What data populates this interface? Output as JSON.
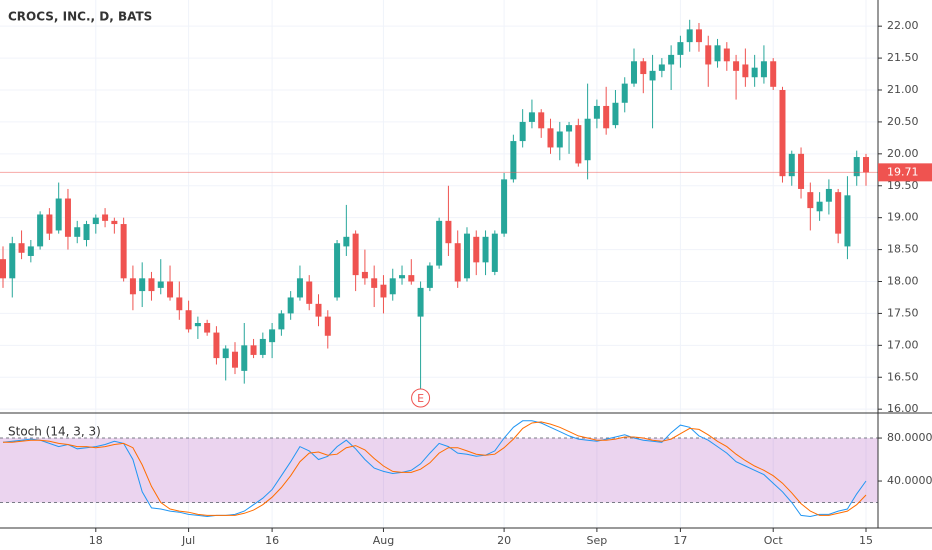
{
  "chart_data": [
    {
      "type": "candlestick",
      "title": "CROCS, INC., D, BATS",
      "up_color": "#26a69a",
      "down_color": "#ef5350",
      "open": [
        18.35,
        18.05,
        18.6,
        18.4,
        18.55,
        19.05,
        18.8,
        19.3,
        18.7,
        18.65,
        18.9,
        19.05,
        18.95,
        18.9,
        18.05,
        17.85,
        18.05,
        17.9,
        18.0,
        17.75,
        17.55,
        17.3,
        17.35,
        17.2,
        16.8,
        16.9,
        16.6,
        17.0,
        16.85,
        17.05,
        17.25,
        17.5,
        17.75,
        18.0,
        17.65,
        17.45,
        17.75,
        18.55,
        18.75,
        18.15,
        18.05,
        17.95,
        17.8,
        18.05,
        18.1,
        17.45,
        17.9,
        18.25,
        18.95,
        18.6,
        18.05,
        18.7,
        18.3,
        18.15,
        18.75,
        19.6,
        20.2,
        20.5,
        20.65,
        20.4,
        20.1,
        20.35,
        20.45,
        19.9,
        20.55,
        20.75,
        20.45,
        20.8,
        21.1,
        21.45,
        21.15,
        21.3,
        21.4,
        21.55,
        21.75,
        21.95,
        21.7,
        21.45,
        21.65,
        21.45,
        21.4,
        21.2,
        21.2,
        21.45,
        21.0,
        19.65,
        20.0,
        19.4,
        19.1,
        19.25,
        19.4,
        18.55,
        19.65,
        19.95
      ],
      "high": [
        18.55,
        18.7,
        18.8,
        18.65,
        19.1,
        19.15,
        19.55,
        19.45,
        18.95,
        18.95,
        19.05,
        19.15,
        19.0,
        19.0,
        18.25,
        18.3,
        18.15,
        18.35,
        18.25,
        18.0,
        17.7,
        17.45,
        17.4,
        17.3,
        17.0,
        17.05,
        17.35,
        17.1,
        17.2,
        17.35,
        17.55,
        17.85,
        18.25,
        18.1,
        17.8,
        17.55,
        18.65,
        19.2,
        18.8,
        18.5,
        18.25,
        18.1,
        18.2,
        18.25,
        18.35,
        18.0,
        18.3,
        19.0,
        19.5,
        18.8,
        18.85,
        18.8,
        18.8,
        18.8,
        19.7,
        20.3,
        20.7,
        20.85,
        20.7,
        20.55,
        20.5,
        20.5,
        20.55,
        21.1,
        20.85,
        21.05,
        21.0,
        21.2,
        21.65,
        21.5,
        21.55,
        21.5,
        21.7,
        21.85,
        22.1,
        22.05,
        21.85,
        21.8,
        21.75,
        21.55,
        21.65,
        21.55,
        21.7,
        21.5,
        21.05,
        20.05,
        20.1,
        19.55,
        19.4,
        19.6,
        19.45,
        19.65,
        20.05,
        20.0
      ],
      "low": [
        17.9,
        17.75,
        18.35,
        18.3,
        18.5,
        18.65,
        18.75,
        18.5,
        18.6,
        18.55,
        18.75,
        18.85,
        18.75,
        18.0,
        17.55,
        17.6,
        17.7,
        17.8,
        17.7,
        17.4,
        17.2,
        17.1,
        17.15,
        16.7,
        16.45,
        16.55,
        16.4,
        16.8,
        16.8,
        16.8,
        17.15,
        17.4,
        17.7,
        17.55,
        17.3,
        16.95,
        17.7,
        18.4,
        17.85,
        17.95,
        17.6,
        17.5,
        17.7,
        17.95,
        17.95,
        16.3,
        17.85,
        18.2,
        18.4,
        17.9,
        18.0,
        18.1,
        18.1,
        18.1,
        18.7,
        19.55,
        20.1,
        20.4,
        20.25,
        20.0,
        19.9,
        20.0,
        19.8,
        19.6,
        20.4,
        20.3,
        20.4,
        20.65,
        21.05,
        20.95,
        20.4,
        21.2,
        21.0,
        21.35,
        21.6,
        21.6,
        21.05,
        21.35,
        21.3,
        20.85,
        21.05,
        21.05,
        21.1,
        21.0,
        19.55,
        19.5,
        19.3,
        18.8,
        18.95,
        19.05,
        18.6,
        18.35,
        19.5,
        19.5
      ],
      "close": [
        18.05,
        18.6,
        18.45,
        18.55,
        19.05,
        18.75,
        19.3,
        18.7,
        18.85,
        18.9,
        19.0,
        18.95,
        18.9,
        18.05,
        17.8,
        18.05,
        17.85,
        18.0,
        17.75,
        17.55,
        17.25,
        17.35,
        17.2,
        16.8,
        16.95,
        16.65,
        17.0,
        16.85,
        17.1,
        17.25,
        17.5,
        17.75,
        18.05,
        17.65,
        17.45,
        17.15,
        18.6,
        18.7,
        18.1,
        18.05,
        17.9,
        17.75,
        18.05,
        18.1,
        18.0,
        17.9,
        18.25,
        18.95,
        18.6,
        18.0,
        18.75,
        18.3,
        18.7,
        18.75,
        19.6,
        20.2,
        20.5,
        20.65,
        20.4,
        20.1,
        20.35,
        20.45,
        19.85,
        20.55,
        20.75,
        20.4,
        20.8,
        21.1,
        21.45,
        21.25,
        21.3,
        21.4,
        21.55,
        21.75,
        21.95,
        21.75,
        21.4,
        21.7,
        21.45,
        21.3,
        21.2,
        21.35,
        21.45,
        21.05,
        19.65,
        20.0,
        19.45,
        19.15,
        19.25,
        19.45,
        18.75,
        19.35,
        19.95,
        19.71
      ],
      "ylim": [
        15.94,
        22.41
      ],
      "yticks": [
        {
          "value": 16,
          "label": "16.00"
        },
        {
          "value": 16.5,
          "label": "16.50"
        },
        {
          "value": 17,
          "label": "17.00"
        },
        {
          "value": 17.5,
          "label": "17.50"
        },
        {
          "value": 18,
          "label": "18.00"
        },
        {
          "value": 18.5,
          "label": "18.50"
        },
        {
          "value": 19,
          "label": "19.00"
        },
        {
          "value": 19.5,
          "label": "19.50"
        },
        {
          "value": 20,
          "label": "20.00"
        },
        {
          "value": 20.5,
          "label": "20.50"
        },
        {
          "value": 21,
          "label": "21.00"
        },
        {
          "value": 21.5,
          "label": "21.50"
        },
        {
          "value": 22,
          "label": "22.00"
        }
      ],
      "earnings": {
        "label": "E",
        "index": 45
      },
      "grid": true
    },
    {
      "type": "line",
      "title": "Stoch (14, 3, 3)",
      "categories": [
        null,
        null,
        null,
        null,
        null,
        null,
        null,
        null,
        null,
        null,
        "18",
        null,
        null,
        null,
        null,
        null,
        null,
        null,
        null,
        null,
        "Jul",
        null,
        null,
        null,
        null,
        null,
        null,
        null,
        null,
        "16",
        null,
        null,
        null,
        null,
        null,
        null,
        null,
        null,
        null,
        null,
        null,
        "Aug",
        null,
        null,
        null,
        null,
        null,
        null,
        null,
        null,
        null,
        null,
        null,
        null,
        "20",
        null,
        null,
        null,
        null,
        null,
        null,
        null,
        null,
        null,
        "Sep",
        null,
        null,
        null,
        null,
        null,
        null,
        null,
        null,
        "17",
        null,
        null,
        null,
        null,
        null,
        null,
        null,
        null,
        null,
        "Oct",
        null,
        null,
        null,
        null,
        null,
        null,
        null,
        null,
        null,
        "15"
      ],
      "series": [
        {
          "color": "#2196f3",
          "values": [
            76,
            77,
            78,
            79,
            78,
            75,
            72,
            74,
            70,
            71,
            72,
            74,
            77,
            75,
            60,
            30,
            15,
            14,
            12,
            11,
            9,
            8,
            7,
            8,
            8,
            9,
            12,
            18,
            24,
            32,
            45,
            58,
            72,
            68,
            60,
            63,
            72,
            78,
            70,
            60,
            52,
            49,
            47,
            48,
            50,
            56,
            66,
            75,
            72,
            66,
            65,
            63,
            64,
            68,
            80,
            90,
            96,
            96,
            94,
            90,
            86,
            82,
            79,
            78,
            77,
            79,
            81,
            83,
            80,
            78,
            77,
            76,
            85,
            92,
            90,
            82,
            78,
            72,
            66,
            58,
            54,
            50,
            46,
            38,
            30,
            20,
            8,
            7,
            9,
            9,
            12,
            14,
            28,
            40
          ]
        },
        {
          "color": "#ff6d00",
          "values": [
            76,
            76,
            77,
            78,
            78,
            77,
            75,
            74,
            72,
            72,
            71,
            72,
            74,
            75,
            71,
            55,
            35,
            20,
            14,
            12,
            11,
            9,
            8,
            8,
            8,
            8,
            10,
            13,
            18,
            25,
            34,
            45,
            58,
            66,
            67,
            64,
            65,
            71,
            73,
            69,
            61,
            54,
            49,
            48,
            48,
            51,
            57,
            66,
            71,
            71,
            68,
            65,
            64,
            65,
            71,
            79,
            89,
            94,
            95,
            93,
            90,
            86,
            82,
            80,
            78,
            78,
            79,
            81,
            81,
            80,
            78,
            77,
            79,
            84,
            89,
            88,
            83,
            77,
            72,
            65,
            59,
            54,
            50,
            45,
            38,
            29,
            19,
            12,
            8,
            8,
            10,
            12,
            18,
            27
          ]
        }
      ],
      "band": [
        20,
        80
      ],
      "band_color": "#9c27b0",
      "ylim": [
        -3.7,
        103.3
      ],
      "yticks": [
        {
          "value": 80,
          "label": "80.0000"
        },
        {
          "value": 40,
          "label": "40.0000"
        }
      ]
    }
  ]
}
